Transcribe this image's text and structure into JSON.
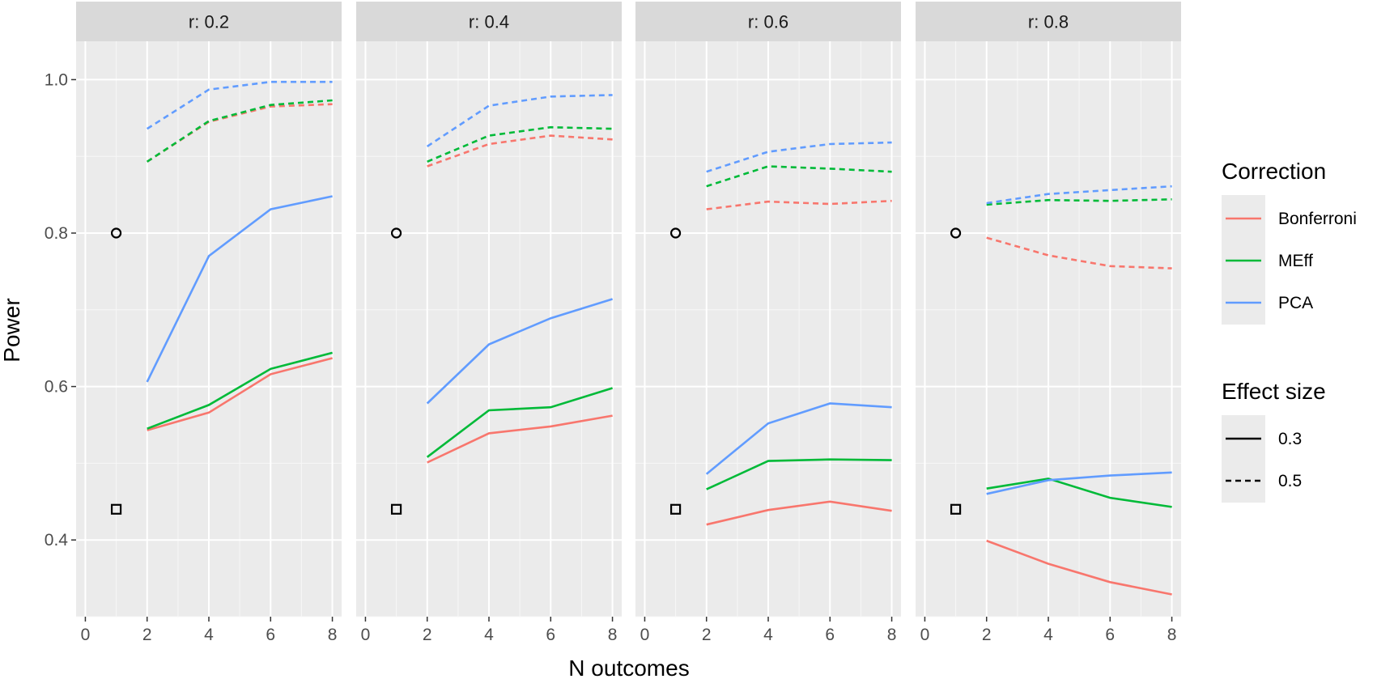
{
  "chart_data": {
    "type": "line",
    "xlabel": "N outcomes",
    "ylabel": "Power",
    "xlim": [
      -0.3,
      8.3
    ],
    "ylim": [
      0.3,
      1.05
    ],
    "x_ticks": [
      "0",
      "2",
      "4",
      "6",
      "8"
    ],
    "y_ticks": [
      "0.4",
      "0.6",
      "0.8",
      "1.0"
    ],
    "grid": true,
    "legend_position": "right",
    "legends": {
      "color": {
        "title": "Correction",
        "entries": [
          "Bonferroni",
          "MEff",
          "PCA"
        ]
      },
      "linetype": {
        "title": "Effect size",
        "entries": [
          "0.3",
          "0.5"
        ]
      }
    },
    "colors": {
      "Bonferroni": "#F8766D",
      "MEff": "#00BA38",
      "PCA": "#619CFF"
    },
    "panels": [
      {
        "label": "r: 0.2",
        "reference_points": [
          {
            "shape": "circle",
            "x": 1,
            "y": 0.8
          },
          {
            "shape": "square",
            "x": 1,
            "y": 0.44
          }
        ],
        "series": [
          {
            "correction": "Bonferroni",
            "effect_size": "0.3",
            "x": [
              2,
              4,
              6,
              8
            ],
            "values": [
              0.543,
              0.566,
              0.616,
              0.637
            ]
          },
          {
            "correction": "MEff",
            "effect_size": "0.3",
            "x": [
              2,
              4,
              6,
              8
            ],
            "values": [
              0.545,
              0.576,
              0.623,
              0.644
            ]
          },
          {
            "correction": "PCA",
            "effect_size": "0.3",
            "x": [
              2,
              4,
              6,
              8
            ],
            "values": [
              0.606,
              0.77,
              0.831,
              0.848
            ]
          },
          {
            "correction": "Bonferroni",
            "effect_size": "0.5",
            "x": [
              2,
              4,
              6,
              8
            ],
            "values": [
              0.893,
              0.945,
              0.965,
              0.968
            ]
          },
          {
            "correction": "MEff",
            "effect_size": "0.5",
            "x": [
              2,
              4,
              6,
              8
            ],
            "values": [
              0.893,
              0.946,
              0.967,
              0.973
            ]
          },
          {
            "correction": "PCA",
            "effect_size": "0.5",
            "x": [
              2,
              4,
              6,
              8
            ],
            "values": [
              0.936,
              0.987,
              0.997,
              0.997
            ]
          }
        ]
      },
      {
        "label": "r: 0.4",
        "reference_points": [
          {
            "shape": "circle",
            "x": 1,
            "y": 0.8
          },
          {
            "shape": "square",
            "x": 1,
            "y": 0.44
          }
        ],
        "series": [
          {
            "correction": "Bonferroni",
            "effect_size": "0.3",
            "x": [
              2,
              4,
              6,
              8
            ],
            "values": [
              0.501,
              0.539,
              0.548,
              0.562
            ]
          },
          {
            "correction": "MEff",
            "effect_size": "0.3",
            "x": [
              2,
              4,
              6,
              8
            ],
            "values": [
              0.508,
              0.569,
              0.573,
              0.598
            ]
          },
          {
            "correction": "PCA",
            "effect_size": "0.3",
            "x": [
              2,
              4,
              6,
              8
            ],
            "values": [
              0.578,
              0.655,
              0.689,
              0.714
            ]
          },
          {
            "correction": "Bonferroni",
            "effect_size": "0.5",
            "x": [
              2,
              4,
              6,
              8
            ],
            "values": [
              0.887,
              0.916,
              0.927,
              0.922
            ]
          },
          {
            "correction": "MEff",
            "effect_size": "0.5",
            "x": [
              2,
              4,
              6,
              8
            ],
            "values": [
              0.893,
              0.927,
              0.938,
              0.936
            ]
          },
          {
            "correction": "PCA",
            "effect_size": "0.5",
            "x": [
              2,
              4,
              6,
              8
            ],
            "values": [
              0.913,
              0.966,
              0.978,
              0.98
            ]
          }
        ]
      },
      {
        "label": "r: 0.6",
        "reference_points": [
          {
            "shape": "circle",
            "x": 1,
            "y": 0.8
          },
          {
            "shape": "square",
            "x": 1,
            "y": 0.44
          }
        ],
        "series": [
          {
            "correction": "Bonferroni",
            "effect_size": "0.3",
            "x": [
              2,
              4,
              6,
              8
            ],
            "values": [
              0.42,
              0.439,
              0.45,
              0.438
            ]
          },
          {
            "correction": "MEff",
            "effect_size": "0.3",
            "x": [
              2,
              4,
              6,
              8
            ],
            "values": [
              0.466,
              0.503,
              0.505,
              0.504
            ]
          },
          {
            "correction": "PCA",
            "effect_size": "0.3",
            "x": [
              2,
              4,
              6,
              8
            ],
            "values": [
              0.486,
              0.552,
              0.578,
              0.573
            ]
          },
          {
            "correction": "Bonferroni",
            "effect_size": "0.5",
            "x": [
              2,
              4,
              6,
              8
            ],
            "values": [
              0.831,
              0.841,
              0.838,
              0.842
            ]
          },
          {
            "correction": "MEff",
            "effect_size": "0.5",
            "x": [
              2,
              4,
              6,
              8
            ],
            "values": [
              0.861,
              0.887,
              0.884,
              0.88
            ]
          },
          {
            "correction": "PCA",
            "effect_size": "0.5",
            "x": [
              2,
              4,
              6,
              8
            ],
            "values": [
              0.88,
              0.906,
              0.916,
              0.918
            ]
          }
        ]
      },
      {
        "label": "r: 0.8",
        "reference_points": [
          {
            "shape": "circle",
            "x": 1,
            "y": 0.8
          },
          {
            "shape": "square",
            "x": 1,
            "y": 0.44
          }
        ],
        "series": [
          {
            "correction": "Bonferroni",
            "effect_size": "0.3",
            "x": [
              2,
              4,
              6,
              8
            ],
            "values": [
              0.399,
              0.369,
              0.345,
              0.329
            ]
          },
          {
            "correction": "MEff",
            "effect_size": "0.3",
            "x": [
              2,
              4,
              6,
              8
            ],
            "values": [
              0.467,
              0.48,
              0.455,
              0.443
            ]
          },
          {
            "correction": "PCA",
            "effect_size": "0.3",
            "x": [
              2,
              4,
              6,
              8
            ],
            "values": [
              0.46,
              0.478,
              0.484,
              0.488
            ]
          },
          {
            "correction": "Bonferroni",
            "effect_size": "0.5",
            "x": [
              2,
              4,
              6,
              8
            ],
            "values": [
              0.794,
              0.771,
              0.757,
              0.754
            ]
          },
          {
            "correction": "MEff",
            "effect_size": "0.5",
            "x": [
              2,
              4,
              6,
              8
            ],
            "values": [
              0.837,
              0.843,
              0.842,
              0.844
            ]
          },
          {
            "correction": "PCA",
            "effect_size": "0.5",
            "x": [
              2,
              4,
              6,
              8
            ],
            "values": [
              0.839,
              0.851,
              0.856,
              0.861
            ]
          }
        ]
      }
    ]
  }
}
